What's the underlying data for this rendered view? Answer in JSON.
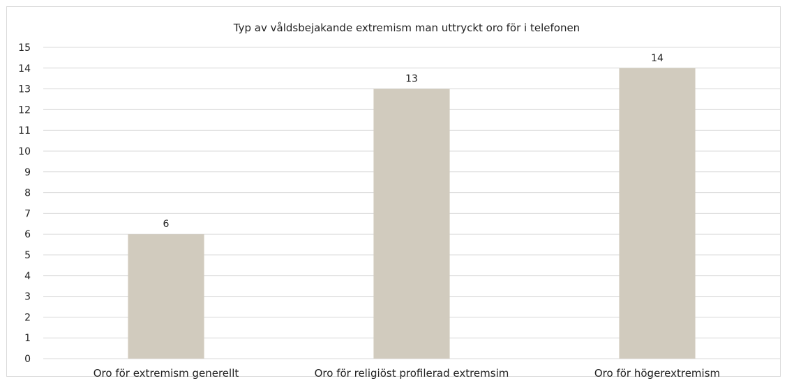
{
  "chart_data": {
    "type": "bar",
    "title": "Typ av våldsbejakande extremism man uttryckt oro för i telefonen",
    "categories": [
      "Oro för extremism generellt",
      "Oro för religiöst profilerad extremsim",
      "Oro för högerextremism"
    ],
    "values": [
      6,
      13,
      14
    ],
    "ylim": [
      0,
      15
    ],
    "ytick_step": 1,
    "grid": true,
    "data_labels": true,
    "bar_color": "#d1cbbe",
    "gridline_color": "#d9d9d9"
  }
}
